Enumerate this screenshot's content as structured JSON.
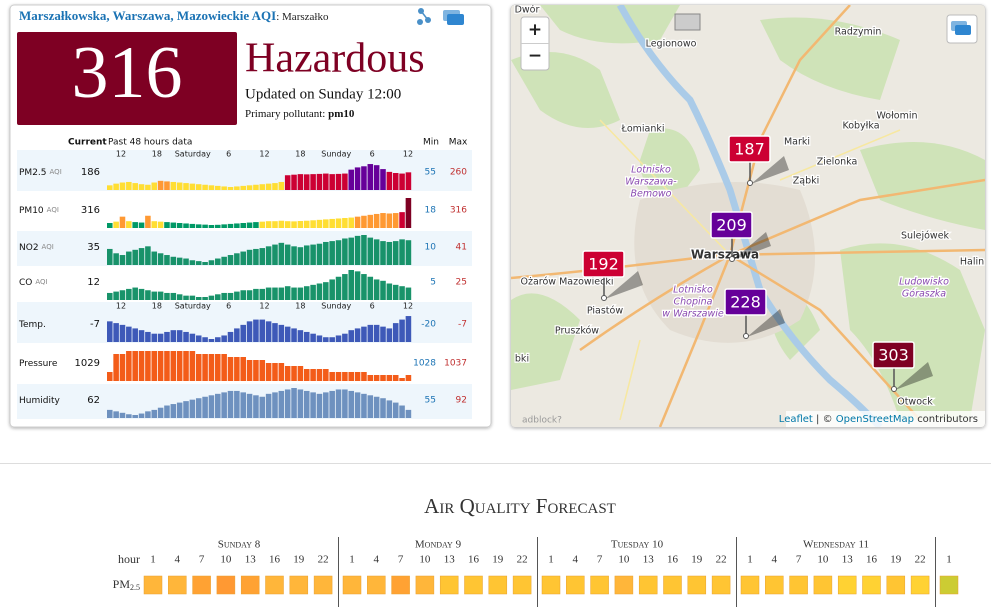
{
  "header": {
    "title": "Marszałkowska, Warszawa, Mazowieckie AQI",
    "station": ": Marszałko"
  },
  "aqi": {
    "value": 316,
    "status": "Hazardous",
    "updated": "Updated on Sunday 12:00",
    "pollutant_label": "Primary pollutant:",
    "pollutant": "pm10"
  },
  "aqi_scale": [
    {
      "upto": 50,
      "color": "#009966"
    },
    {
      "upto": 100,
      "color": "#ffde33"
    },
    {
      "upto": 150,
      "color": "#ff9933"
    },
    {
      "upto": 200,
      "color": "#cc0033"
    },
    {
      "upto": 300,
      "color": "#660099"
    },
    {
      "color": "#7e0023"
    }
  ],
  "history": {
    "current_label": "Current",
    "period_label": "Past 48 hours data",
    "min_label": "Min",
    "max_label": "Max",
    "time_labels": [
      "12",
      "18",
      "Saturday",
      "6",
      "12",
      "18",
      "Sunday",
      "6",
      "12"
    ],
    "rows": [
      {
        "name": "PM2.5",
        "unit": "AQI",
        "current": 186,
        "min": 55,
        "max": 260,
        "color": "aqi",
        "time_axis": true,
        "values": [
          70,
          85,
          95,
          100,
          90,
          80,
          75,
          95,
          110,
          105,
          100,
          95,
          90,
          85,
          80,
          75,
          70,
          65,
          60,
          55,
          60,
          65,
          70,
          75,
          80,
          85,
          90,
          100,
          160,
          165,
          170,
          168,
          170,
          172,
          175,
          170,
          172,
          175,
          210,
          230,
          240,
          260,
          250,
          215,
          190,
          180,
          175,
          186
        ]
      },
      {
        "name": "PM10",
        "unit": "AQI",
        "current": 316,
        "min": 18,
        "max": 316,
        "color": "aqi",
        "time_axis": false,
        "values": [
          40,
          55,
          110,
          60,
          50,
          45,
          120,
          60,
          55,
          50,
          45,
          40,
          35,
          30,
          25,
          22,
          18,
          20,
          25,
          30,
          35,
          40,
          45,
          50,
          55,
          60,
          60,
          65,
          60,
          58,
          62,
          65,
          70,
          75,
          80,
          85,
          90,
          95,
          100,
          110,
          120,
          130,
          140,
          150,
          145,
          150,
          160,
          316
        ]
      },
      {
        "name": "NO2",
        "unit": "AQI",
        "current": 35,
        "min": 10,
        "max": 41,
        "color": "#00875a",
        "time_axis": false,
        "values": [
          25,
          20,
          18,
          22,
          24,
          26,
          28,
          22,
          20,
          18,
          16,
          15,
          14,
          12,
          11,
          10,
          12,
          14,
          16,
          18,
          20,
          22,
          24,
          25,
          26,
          28,
          30,
          32,
          30,
          28,
          27,
          29,
          30,
          31,
          33,
          34,
          35,
          37,
          38,
          40,
          41,
          38,
          36,
          34,
          33,
          34,
          36,
          35
        ]
      },
      {
        "name": "CO",
        "unit": "AQI",
        "current": 12,
        "min": 5,
        "max": 25,
        "color": "#00875a",
        "time_axis": false,
        "values": [
          8,
          9,
          10,
          11,
          12,
          11,
          10,
          9,
          9,
          8,
          8,
          7,
          6,
          6,
          5,
          5,
          6,
          7,
          8,
          8,
          9,
          10,
          10,
          11,
          11,
          12,
          12,
          12,
          13,
          12,
          12,
          13,
          14,
          15,
          16,
          18,
          20,
          22,
          25,
          24,
          22,
          20,
          18,
          17,
          15,
          14,
          13,
          12
        ]
      },
      {
        "name": "Temp.",
        "unit": null,
        "current": -7,
        "min": -20,
        "max": -7,
        "color": "#2a48b0",
        "time_axis": true,
        "values": [
          -10,
          -11,
          -12,
          -13,
          -14,
          -15,
          -16,
          -17,
          -17,
          -16,
          -15,
          -15,
          -16,
          -17,
          -18,
          -19,
          -20,
          -19,
          -18,
          -16,
          -14,
          -12,
          -10,
          -9,
          -9,
          -10,
          -11,
          -12,
          -13,
          -14,
          -15,
          -16,
          -17,
          -18,
          -19,
          -19,
          -18,
          -17,
          -15,
          -14,
          -13,
          -12,
          -12,
          -13,
          -14,
          -11,
          -9,
          -7
        ]
      },
      {
        "name": "Pressure",
        "unit": null,
        "current": 1029,
        "min": 1028,
        "max": 1037,
        "color": "#f24a00",
        "time_axis": false,
        "values": [
          1030,
          1036,
          1036,
          1037,
          1037,
          1037,
          1037,
          1037,
          1037,
          1037,
          1037,
          1037,
          1037,
          1037,
          1036,
          1036,
          1036,
          1036,
          1036,
          1035,
          1035,
          1035,
          1034,
          1034,
          1034,
          1033,
          1033,
          1033,
          1032,
          1032,
          1032,
          1031,
          1031,
          1031,
          1031,
          1030,
          1030,
          1030,
          1030,
          1030,
          1030,
          1029,
          1029,
          1029,
          1029,
          1029,
          1028,
          1029
        ]
      },
      {
        "name": "Humidity",
        "unit": null,
        "current": 62,
        "min": 55,
        "max": 92,
        "color": "#5f86b8",
        "time_axis": false,
        "values": [
          62,
          60,
          58,
          56,
          55,
          57,
          60,
          62,
          65,
          68,
          70,
          72,
          74,
          76,
          78,
          80,
          82,
          84,
          86,
          88,
          88,
          86,
          84,
          82,
          80,
          84,
          86,
          88,
          90,
          92,
          90,
          88,
          86,
          84,
          86,
          88,
          90,
          90,
          88,
          86,
          84,
          82,
          80,
          78,
          75,
          72,
          68,
          62
        ]
      }
    ]
  },
  "map": {
    "zoom_in": "+",
    "zoom_out": "−",
    "adblock": "adblock?",
    "attribution": {
      "leaflet": "Leaflet",
      "sep": "| ©",
      "osm": "OpenStreetMap",
      "rest": "contributors"
    },
    "places": [
      [
        "Dwór"
      ],
      [
        "Legionowo"
      ],
      [
        "Radzymin"
      ],
      [
        "Łomianki"
      ],
      [
        "Marki"
      ],
      [
        "Kobyłka"
      ],
      [
        "Wołomin"
      ],
      [
        "Lotnisko",
        "Warszawa-",
        "Bemowo"
      ],
      [
        "Zielonka"
      ],
      [
        "Ząbki"
      ],
      [
        "Sulejówek"
      ],
      [
        "Halin"
      ],
      [
        "Ożarów Mazowiecki"
      ],
      [
        "Warszawa"
      ],
      [
        "Lotnisko",
        "Chopina",
        "w Warszawie"
      ],
      [
        "Ludowisko",
        "Góraszka"
      ],
      [
        "Piastów"
      ],
      [
        "Pruszków"
      ],
      [
        "Otwock"
      ],
      [
        "bki"
      ]
    ],
    "markers": [
      {
        "value": 187
      },
      {
        "value": 209
      },
      {
        "value": 192
      },
      {
        "value": 228
      },
      {
        "value": 303
      }
    ]
  },
  "forecast": {
    "title": "Air Quality Forecast",
    "hour_label": "hour",
    "pollutant": {
      "base": "PM",
      "sub": "2.5"
    },
    "days": [
      {
        "name": "Sunday 8",
        "hours": [
          1,
          4,
          7,
          10,
          13,
          16,
          19,
          22
        ]
      },
      {
        "name": "Monday 9",
        "hours": [
          1,
          4,
          7,
          10,
          13,
          16,
          19,
          22
        ]
      },
      {
        "name": "Tuesday 10",
        "hours": [
          1,
          4,
          7,
          10,
          13,
          16,
          19,
          22
        ]
      },
      {
        "name": "Wednesday 11",
        "hours": [
          1,
          4,
          7,
          10,
          13,
          16,
          19,
          22
        ]
      },
      {
        "name": null,
        "hours": [
          1
        ]
      }
    ],
    "colors": [
      [
        "#ffb63a",
        "#ffb63a",
        "#ffa233",
        "#ff9933",
        "#ffa233",
        "#ffb63a",
        "#ffb63a",
        "#ffb63a"
      ],
      [
        "#ffb63a",
        "#ffb63a",
        "#ffa233",
        "#ffb63a",
        "#ffc533",
        "#ffc533",
        "#ffc533",
        "#ffc533"
      ],
      [
        "#ffc533",
        "#ffc533",
        "#ffc533",
        "#ffb63a",
        "#ffc533",
        "#ffc533",
        "#ffc533",
        "#ffc533"
      ],
      [
        "#ffc533",
        "#ffc533",
        "#ffc533",
        "#ffc533",
        "#ffd233",
        "#ffd233",
        "#ffc533",
        "#ffd233"
      ],
      [
        "#cccc33"
      ]
    ]
  }
}
